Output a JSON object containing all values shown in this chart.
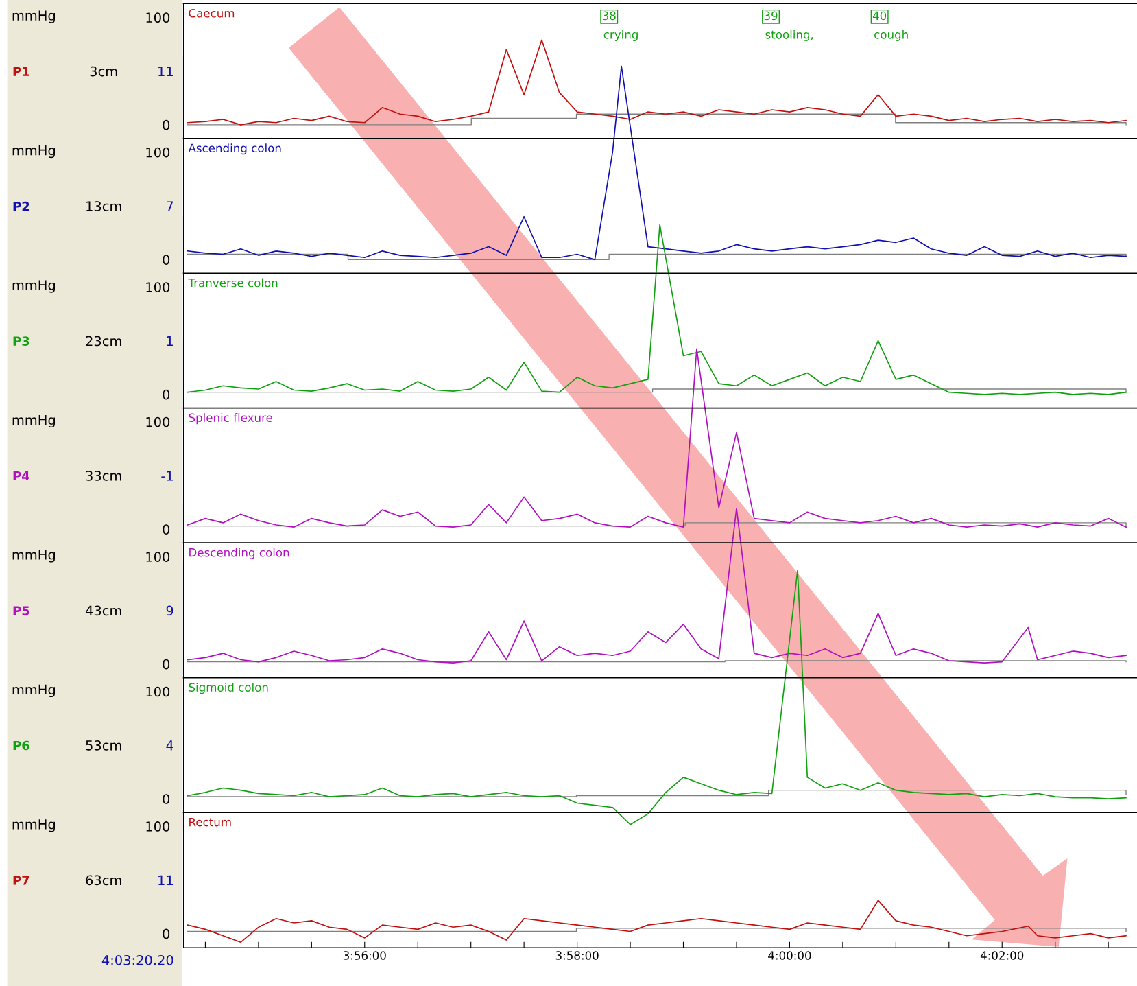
{
  "chart_data": [
    {
      "type": "line",
      "title": "Caecum",
      "ylabel": "mmHg",
      "xlim": [
        3.9049,
        4.0545
      ],
      "ylim": [
        -13,
        113
      ],
      "yticks": [
        0,
        100
      ],
      "tick_labels": "y",
      "x": [
        3.90556,
        3.90833,
        3.91111,
        3.91389,
        3.91667,
        3.91944,
        3.92222,
        3.925,
        3.92778,
        3.93056,
        3.93333,
        3.93611,
        3.93889,
        3.94167,
        3.94444,
        3.94722,
        3.95,
        3.95278,
        3.95556,
        3.95833,
        3.96111,
        3.96389,
        3.96667,
        3.96944,
        3.97222,
        3.975,
        3.97778,
        3.98056,
        3.98333,
        3.98611,
        3.98889,
        3.99167,
        3.99444,
        3.99722,
        4.0,
        4.00278,
        4.00556,
        4.00833,
        4.01111,
        4.01389,
        4.01667,
        4.01944,
        4.02222,
        4.025,
        4.02778,
        4.03056,
        4.03333,
        4.03611,
        4.03889,
        4.04167,
        4.04444,
        4.04722,
        4.05,
        4.05278
      ],
      "series": [
        {
          "name": "P1",
          "color": "#c01010",
          "values": [
            2,
            3,
            5,
            0,
            3,
            2,
            6,
            4,
            8,
            3,
            2,
            16,
            10,
            8,
            3,
            5,
            8,
            12,
            70,
            28,
            79,
            30,
            12,
            10,
            8,
            5,
            12,
            10,
            12,
            8,
            14,
            12,
            10,
            14,
            12,
            16,
            14,
            10,
            8,
            28,
            8,
            10,
            8,
            4,
            6,
            3,
            5,
            6,
            3,
            5,
            3,
            4,
            2,
            4
          ]
        },
        {
          "type": "step",
          "color": "#808080",
          "x": [
            3.90556,
            3.95006,
            3.96655,
            4.01661,
            4.05278
          ],
          "values": [
            0,
            6,
            10,
            2,
            0
          ]
        }
      ],
      "annotations": [
        "3cm",
        "11",
        "38",
        "crying",
        "39",
        "stooling,",
        "40",
        "cough"
      ]
    },
    {
      "type": "line",
      "title": "Ascending colon",
      "ylabel": "mmHg",
      "xlim": [
        3.9049,
        4.0545
      ],
      "ylim": [
        -13,
        190
      ],
      "yticks": [
        0,
        100
      ],
      "tick_labels": "y",
      "series": [
        {
          "name": "P2",
          "color": "#1010b0",
          "x": [
            3.90556,
            3.90833,
            3.91111,
            3.91389,
            3.91667,
            3.91944,
            3.92222,
            3.925,
            3.92778,
            3.93056,
            3.93333,
            3.93611,
            3.93889,
            3.94167,
            3.94444,
            3.94722,
            3.95,
            3.95278,
            3.95556,
            3.95833,
            3.96111,
            3.96389,
            3.96667,
            3.96944,
            3.97222,
            3.97361,
            3.97778,
            3.98056,
            3.98333,
            3.98611,
            3.98889,
            3.99167,
            3.99444,
            3.99722,
            4.0,
            4.00278,
            4.00556,
            4.00833,
            4.01111,
            4.01389,
            4.01667,
            4.01944,
            4.02222,
            4.025,
            4.02778,
            4.03056,
            4.03333,
            4.03611,
            4.03889,
            4.04167,
            4.04444,
            4.04722,
            4.05,
            4.05278
          ],
          "values": [
            8,
            6,
            5,
            10,
            4,
            8,
            6,
            3,
            6,
            4,
            2,
            8,
            4,
            3,
            2,
            4,
            6,
            12,
            4,
            40,
            2,
            2,
            5,
            0,
            100,
            180,
            12,
            10,
            8,
            6,
            8,
            14,
            10,
            8,
            10,
            12,
            10,
            12,
            14,
            18,
            16,
            20,
            10,
            6,
            4,
            12,
            4,
            3,
            8,
            3,
            6,
            2,
            4,
            3
          ]
        },
        {
          "type": "step",
          "color": "#808080",
          "x": [
            3.90556,
            3.93072,
            3.97167,
            4.05278
          ],
          "values": [
            5,
            0,
            5,
            3
          ]
        }
      ],
      "annotations": [
        "13cm",
        "7"
      ]
    },
    {
      "type": "line",
      "title": "Tranverse colon",
      "ylabel": "mmHg",
      "xlim": [
        3.9049,
        4.0545
      ],
      "ylim": [
        -13,
        165
      ],
      "yticks": [
        0,
        100
      ],
      "tick_labels": "y",
      "series": [
        {
          "name": "P3",
          "color": "#10a010",
          "x": [
            3.90556,
            3.90833,
            3.91111,
            3.91389,
            3.91667,
            3.91944,
            3.92222,
            3.925,
            3.92778,
            3.93056,
            3.93333,
            3.93611,
            3.93889,
            3.94167,
            3.94444,
            3.94722,
            3.95,
            3.95278,
            3.95556,
            3.95833,
            3.96111,
            3.96389,
            3.96667,
            3.96944,
            3.97222,
            3.975,
            3.97778,
            3.97963,
            3.98333,
            3.98611,
            3.98889,
            3.99167,
            3.99444,
            3.99722,
            4.0,
            4.00278,
            4.00556,
            4.00833,
            4.01111,
            4.01389,
            4.01667,
            4.01944,
            4.02222,
            4.025,
            4.02778,
            4.03056,
            4.03333,
            4.03611,
            4.03889,
            4.04167,
            4.04444,
            4.04722,
            4.05,
            4.05278
          ],
          "values": [
            2,
            4,
            8,
            6,
            5,
            12,
            4,
            3,
            6,
            10,
            4,
            5,
            3,
            12,
            4,
            3,
            5,
            16,
            4,
            30,
            3,
            2,
            16,
            8,
            6,
            10,
            14,
            158,
            36,
            40,
            10,
            8,
            18,
            8,
            14,
            20,
            8,
            16,
            12,
            50,
            14,
            18,
            10,
            2,
            1,
            0,
            1,
            0,
            1,
            2,
            0,
            1,
            0,
            2
          ]
        },
        {
          "type": "step",
          "color": "#808080",
          "x": [
            3.90556,
            3.9785,
            4.05278
          ],
          "values": [
            2,
            5,
            2
          ]
        }
      ],
      "annotations": [
        "23cm",
        "1"
      ]
    },
    {
      "type": "line",
      "title": "Splenic flexure",
      "ylabel": "mmHg",
      "xlim": [
        3.9049,
        4.0545
      ],
      "ylim": [
        -13,
        175
      ],
      "yticks": [
        0,
        100
      ],
      "tick_labels": "y",
      "series": [
        {
          "name": "P4",
          "color": "#b010c0",
          "x": [
            3.90556,
            3.90833,
            3.91111,
            3.91389,
            3.91667,
            3.91944,
            3.92222,
            3.925,
            3.92778,
            3.93056,
            3.93333,
            3.93611,
            3.93889,
            3.94167,
            3.94444,
            3.94722,
            3.95,
            3.95278,
            3.95556,
            3.95833,
            3.96111,
            3.96389,
            3.96667,
            3.96944,
            3.97222,
            3.975,
            3.97778,
            3.98056,
            3.98333,
            3.98542,
            3.98889,
            3.99167,
            3.99444,
            3.99722,
            4.0,
            4.00278,
            4.00556,
            4.00833,
            4.01111,
            4.01389,
            4.01667,
            4.01944,
            4.02222,
            4.025,
            4.02778,
            4.03056,
            4.03333,
            4.03611,
            4.03889,
            4.04167,
            4.04444,
            4.04722,
            4.05,
            4.05278
          ],
          "values": [
            4,
            10,
            6,
            14,
            8,
            4,
            2,
            10,
            6,
            3,
            4,
            18,
            12,
            16,
            3,
            2,
            4,
            23,
            6,
            30,
            8,
            10,
            14,
            6,
            3,
            2,
            12,
            6,
            2,
            168,
            20,
            90,
            10,
            8,
            6,
            16,
            10,
            8,
            6,
            8,
            12,
            6,
            10,
            4,
            2,
            4,
            3,
            5,
            2,
            6,
            4,
            3,
            10,
            2
          ]
        },
        {
          "type": "step",
          "color": "#808080",
          "x": [
            3.90556,
            3.98361,
            4.05278
          ],
          "values": [
            3,
            6,
            2
          ]
        }
      ],
      "annotations": [
        "33cm",
        "-1"
      ]
    },
    {
      "type": "line",
      "title": "Descending colon",
      "ylabel": "mmHg",
      "xlim": [
        3.9049,
        4.0545
      ],
      "ylim": [
        -13,
        150
      ],
      "yticks": [
        0,
        100
      ],
      "tick_labels": "y",
      "series": [
        {
          "name": "P5",
          "color": "#b010c0",
          "x": [
            3.90556,
            3.90833,
            3.91111,
            3.91389,
            3.91667,
            3.91944,
            3.92222,
            3.925,
            3.92778,
            3.93056,
            3.93333,
            3.93611,
            3.93889,
            3.94167,
            3.94444,
            3.94722,
            3.95,
            3.95278,
            3.95556,
            3.95833,
            3.96111,
            3.96389,
            3.96667,
            3.96944,
            3.97222,
            3.975,
            3.97778,
            3.98056,
            3.98333,
            3.98611,
            3.98889,
            3.99167,
            3.99444,
            3.99722,
            4.0,
            4.00278,
            4.00556,
            4.00833,
            4.01111,
            4.01389,
            4.01667,
            4.01944,
            4.02222,
            4.025,
            4.02778,
            4.03056,
            4.03333,
            4.03742,
            4.03889,
            4.04167,
            4.04444,
            4.04722,
            4.05,
            4.05278
          ],
          "values": [
            4,
            6,
            10,
            4,
            2,
            6,
            12,
            8,
            3,
            4,
            6,
            14,
            10,
            4,
            2,
            1,
            3,
            30,
            4,
            40,
            3,
            16,
            8,
            10,
            8,
            12,
            30,
            20,
            37,
            14,
            5,
            145,
            10,
            6,
            10,
            8,
            14,
            6,
            10,
            47,
            8,
            14,
            10,
            3,
            2,
            1,
            2,
            34,
            4,
            8,
            12,
            10,
            6,
            8
          ]
        },
        {
          "type": "step",
          "color": "#808080",
          "x": [
            3.90556,
            3.98986,
            4.05278
          ],
          "values": [
            2,
            3,
            2
          ]
        }
      ],
      "annotations": [
        "43cm",
        "9"
      ]
    },
    {
      "type": "line",
      "title": "Sigmoid colon",
      "ylabel": "mmHg",
      "xlim": [
        3.9049,
        4.0545
      ],
      "ylim": [
        -30,
        220
      ],
      "yticks": [
        0,
        100
      ],
      "tick_labels": "y",
      "series": [
        {
          "name": "P6",
          "color": "#10a010",
          "x": [
            3.90556,
            3.90833,
            3.91111,
            3.91389,
            3.91667,
            3.91944,
            3.92222,
            3.925,
            3.92778,
            3.93056,
            3.93333,
            3.93611,
            3.93889,
            3.94167,
            3.94444,
            3.94722,
            3.95,
            3.95278,
            3.95556,
            3.95833,
            3.96111,
            3.96389,
            3.96667,
            3.96944,
            3.97222,
            3.975,
            3.97778,
            3.98056,
            3.98333,
            3.98611,
            3.98889,
            3.99167,
            3.99444,
            3.99722,
            4.00125,
            4.00278,
            4.00556,
            4.00833,
            4.01111,
            4.01389,
            4.01667,
            4.01944,
            4.02222,
            4.025,
            4.02778,
            4.03056,
            4.03333,
            4.03611,
            4.03889,
            4.04167,
            4.04444,
            4.04722,
            4.05,
            4.05278
          ],
          "values": [
            3,
            6,
            10,
            8,
            5,
            4,
            3,
            6,
            2,
            3,
            4,
            10,
            3,
            2,
            4,
            5,
            2,
            4,
            6,
            3,
            2,
            3,
            -4,
            -6,
            -8,
            -24,
            -14,
            6,
            20,
            14,
            8,
            4,
            6,
            5,
            213,
            20,
            10,
            14,
            8,
            15,
            8,
            6,
            5,
            4,
            5,
            2,
            4,
            3,
            5,
            2,
            1,
            1,
            0,
            1
          ]
        },
        {
          "type": "step",
          "color": "#808080",
          "x": [
            3.90556,
            3.96655,
            3.99669,
            4.05278
          ],
          "values": [
            2,
            3,
            8,
            4
          ]
        }
      ],
      "annotations": [
        "53cm",
        "4"
      ]
    },
    {
      "type": "line",
      "title": "Rectum",
      "ylabel": "mmHg",
      "xlim": [
        3.9049,
        4.0545
      ],
      "ylim": [
        -13,
        113
      ],
      "yticks": [
        0,
        100
      ],
      "xticks": [
        {
          "value": 3.90833,
          "label": null
        },
        {
          "value": 3.91667,
          "label": null
        },
        {
          "value": 3.925,
          "label": null
        },
        {
          "value": 3.93333,
          "label": "3:56:00"
        },
        {
          "value": 3.94167,
          "label": null
        },
        {
          "value": 3.95,
          "label": null
        },
        {
          "value": 3.95833,
          "label": null
        },
        {
          "value": 3.96667,
          "label": "3:58:00"
        },
        {
          "value": 3.975,
          "label": null
        },
        {
          "value": 3.98333,
          "label": null
        },
        {
          "value": 3.99167,
          "label": null
        },
        {
          "value": 4.0,
          "label": "4:00:00"
        },
        {
          "value": 4.00833,
          "label": null
        },
        {
          "value": 4.01667,
          "label": null
        },
        {
          "value": 4.025,
          "label": null
        },
        {
          "value": 4.03333,
          "label": "4:02:00"
        },
        {
          "value": 4.04167,
          "label": null
        },
        {
          "value": 4.05,
          "label": null
        }
      ],
      "series": [
        {
          "name": "P7",
          "color": "#c01010",
          "x": [
            3.90556,
            3.90833,
            3.91111,
            3.91389,
            3.91667,
            3.91944,
            3.92222,
            3.925,
            3.92778,
            3.93056,
            3.93333,
            3.93611,
            3.93889,
            3.94167,
            3.94444,
            3.94722,
            3.95,
            3.95278,
            3.95556,
            3.95833,
            3.96111,
            3.96389,
            3.96667,
            3.96944,
            3.97222,
            3.975,
            3.97778,
            3.98056,
            3.98333,
            3.98611,
            3.98889,
            3.99167,
            3.99444,
            3.99722,
            4.0,
            4.00278,
            4.00556,
            4.00833,
            4.01111,
            4.01389,
            4.01667,
            4.01944,
            4.02222,
            4.025,
            4.02778,
            4.03056,
            4.03333,
            4.03742,
            4.03889,
            4.04167,
            4.04444,
            4.04722,
            4.05,
            4.05278
          ],
          "values": [
            8,
            4,
            -2,
            -8,
            6,
            14,
            10,
            12,
            6,
            4,
            -4,
            8,
            6,
            4,
            10,
            6,
            8,
            2,
            -6,
            14,
            12,
            10,
            8,
            6,
            4,
            2,
            8,
            10,
            12,
            14,
            12,
            10,
            8,
            6,
            4,
            10,
            8,
            6,
            4,
            31,
            12,
            8,
            6,
            2,
            -2,
            0,
            2,
            7,
            -2,
            -4,
            -2,
            0,
            -4,
            -2
          ]
        },
        {
          "type": "step",
          "color": "#808080",
          "x": [
            3.90556,
            3.96655,
            4.05278
          ],
          "values": [
            2,
            5,
            2
          ]
        }
      ],
      "annotations": [
        "63cm",
        "11",
        "4:03:20.20"
      ]
    }
  ]
}
